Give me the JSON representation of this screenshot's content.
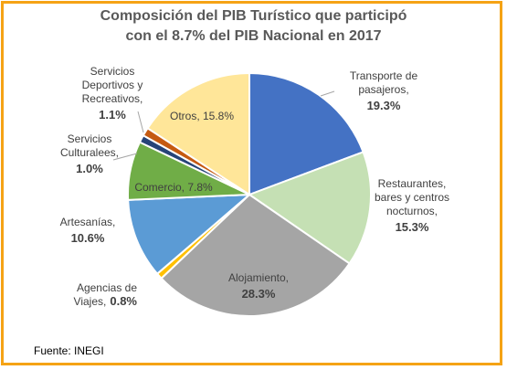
{
  "chart_data": {
    "type": "pie",
    "title_line1": "Composición del PIB Turístico que participó",
    "title_line2": "con el 8.7% del PIB Nacional en 2017",
    "slices": [
      {
        "label": [
          "Transporte de",
          "pasajeros,"
        ],
        "value": 19.3,
        "value_text": "19.3%",
        "color": "#4472c4"
      },
      {
        "label": [
          "Restaurantes,",
          "bares y centros",
          "nocturnos,"
        ],
        "value": 15.3,
        "value_text": "15.3%",
        "color": "#c5e0b4"
      },
      {
        "label": [
          "Alojamiento,"
        ],
        "value": 28.3,
        "value_text": "28.3%",
        "color": "#a5a5a5"
      },
      {
        "label": [
          "Agencias de",
          "Viajes,"
        ],
        "value": 0.8,
        "value_text": "0.8%",
        "color": "#ffc000"
      },
      {
        "label": [
          "Artesanías,"
        ],
        "value": 10.6,
        "value_text": "10.6%",
        "color": "#5b9bd5"
      },
      {
        "label": [
          "Comercio,"
        ],
        "value": 7.8,
        "value_text": "7.8%",
        "color": "#70ad47"
      },
      {
        "label": [
          "Servicios",
          "Culturalees,"
        ],
        "value": 1.0,
        "value_text": "1.0%",
        "color": "#264478"
      },
      {
        "label": [
          "Servicios",
          "Deportivos y",
          "Recreativos,"
        ],
        "value": 1.1,
        "value_text": "1.1%",
        "color": "#c55a11"
      },
      {
        "label": [
          "Otros,"
        ],
        "value": 15.8,
        "value_text": "15.8%",
        "color": "#ffe699"
      }
    ],
    "start_angle_deg": 0,
    "direction": "clockwise"
  },
  "source": "Fuente: INEGI"
}
